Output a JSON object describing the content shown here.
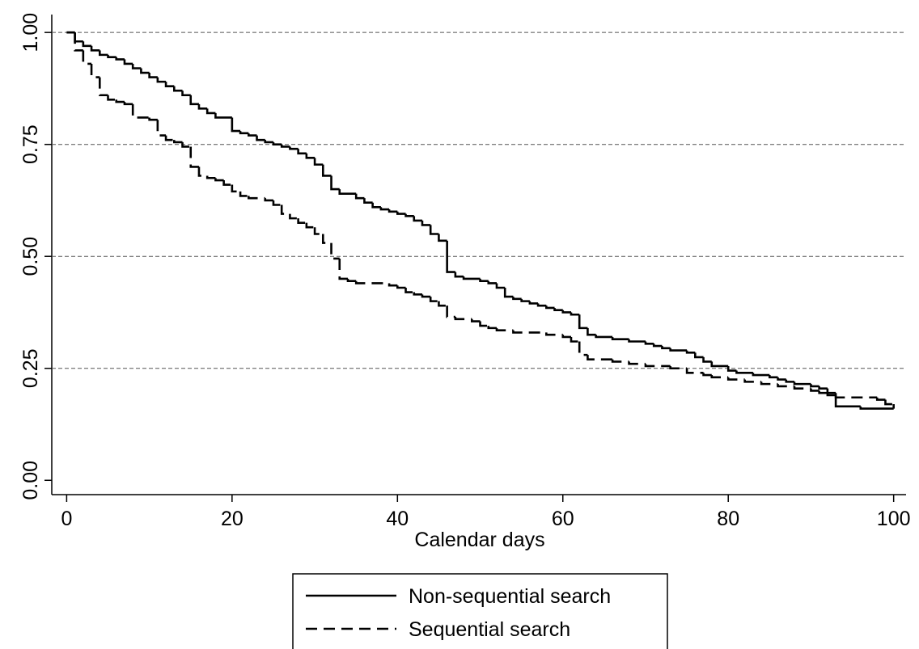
{
  "chart_data": {
    "type": "step",
    "x_label": "Calendar days",
    "xlim": [
      -1.8,
      101.5
    ],
    "xticks": [
      0,
      20,
      40,
      60,
      80,
      100
    ],
    "ylim": [
      -0.032,
      1.04
    ],
    "yticks": [
      {
        "value": 0,
        "label": "0.00"
      },
      {
        "value": 0.25,
        "label": "0.25"
      },
      {
        "value": 0.5,
        "label": "0.50"
      },
      {
        "value": 0.75,
        "label": "0.75"
      },
      {
        "value": 1,
        "label": "1.00"
      }
    ],
    "grid": true,
    "legend": "bottom",
    "series": [
      {
        "name": "Non-sequential search",
        "color": "#000000",
        "dash": "solid",
        "x": [
          0,
          1,
          2,
          3,
          4,
          5,
          6,
          7,
          8,
          9,
          10,
          11,
          12,
          13,
          14,
          15,
          16,
          17,
          18,
          20,
          21,
          22,
          23,
          24,
          25,
          26,
          27,
          28,
          29,
          30,
          31,
          32,
          33,
          35,
          36,
          37,
          38,
          39,
          40,
          41,
          42,
          43,
          44,
          45,
          46,
          47,
          48,
          50,
          51,
          52,
          53,
          54,
          55,
          56,
          57,
          58,
          59,
          60,
          61,
          62,
          63,
          64,
          66,
          68,
          70,
          71,
          72,
          73,
          75,
          76,
          77,
          78,
          80,
          81,
          83,
          85,
          86,
          87,
          88,
          90,
          91,
          92,
          93,
          96,
          100
        ],
        "values": [
          1,
          0.98,
          0.97,
          0.96,
          0.95,
          0.945,
          0.94,
          0.93,
          0.92,
          0.91,
          0.9,
          0.89,
          0.88,
          0.87,
          0.86,
          0.84,
          0.83,
          0.82,
          0.81,
          0.78,
          0.775,
          0.77,
          0.76,
          0.755,
          0.75,
          0.745,
          0.74,
          0.73,
          0.72,
          0.705,
          0.68,
          0.65,
          0.64,
          0.63,
          0.62,
          0.61,
          0.605,
          0.6,
          0.595,
          0.59,
          0.58,
          0.57,
          0.55,
          0.535,
          0.465,
          0.455,
          0.45,
          0.445,
          0.44,
          0.43,
          0.41,
          0.405,
          0.4,
          0.395,
          0.39,
          0.385,
          0.38,
          0.375,
          0.37,
          0.34,
          0.325,
          0.32,
          0.315,
          0.31,
          0.305,
          0.3,
          0.295,
          0.29,
          0.285,
          0.275,
          0.265,
          0.255,
          0.245,
          0.24,
          0.235,
          0.23,
          0.225,
          0.22,
          0.215,
          0.21,
          0.205,
          0.195,
          0.165,
          0.16,
          0.16
        ]
      },
      {
        "name": "Sequential search",
        "color": "#000000",
        "dash": "dashed",
        "x": [
          0,
          1,
          2,
          3,
          4,
          5,
          6,
          7,
          8,
          10,
          11,
          12,
          13,
          14,
          15,
          16,
          17,
          18,
          19,
          20,
          21,
          22,
          24,
          25,
          26,
          27,
          28,
          29,
          30,
          31,
          32,
          33,
          34,
          35,
          39,
          40,
          41,
          42,
          43,
          44,
          45,
          46,
          47,
          49,
          50,
          51,
          52,
          54,
          58,
          60,
          61,
          62,
          63,
          66,
          68,
          70,
          73,
          75,
          77,
          78,
          80,
          82,
          84,
          86,
          88,
          90,
          91,
          92,
          93,
          98,
          99,
          100
        ],
        "values": [
          1,
          0.96,
          0.93,
          0.9,
          0.86,
          0.85,
          0.845,
          0.84,
          0.81,
          0.805,
          0.77,
          0.76,
          0.755,
          0.745,
          0.7,
          0.68,
          0.675,
          0.67,
          0.66,
          0.645,
          0.635,
          0.63,
          0.625,
          0.615,
          0.595,
          0.585,
          0.575,
          0.565,
          0.55,
          0.53,
          0.495,
          0.45,
          0.445,
          0.44,
          0.435,
          0.43,
          0.42,
          0.415,
          0.41,
          0.4,
          0.39,
          0.365,
          0.36,
          0.355,
          0.345,
          0.34,
          0.335,
          0.33,
          0.325,
          0.32,
          0.31,
          0.28,
          0.27,
          0.265,
          0.26,
          0.255,
          0.25,
          0.24,
          0.235,
          0.23,
          0.225,
          0.22,
          0.215,
          0.21,
          0.205,
          0.2,
          0.195,
          0.19,
          0.185,
          0.18,
          0.17,
          0.16
        ]
      }
    ]
  }
}
